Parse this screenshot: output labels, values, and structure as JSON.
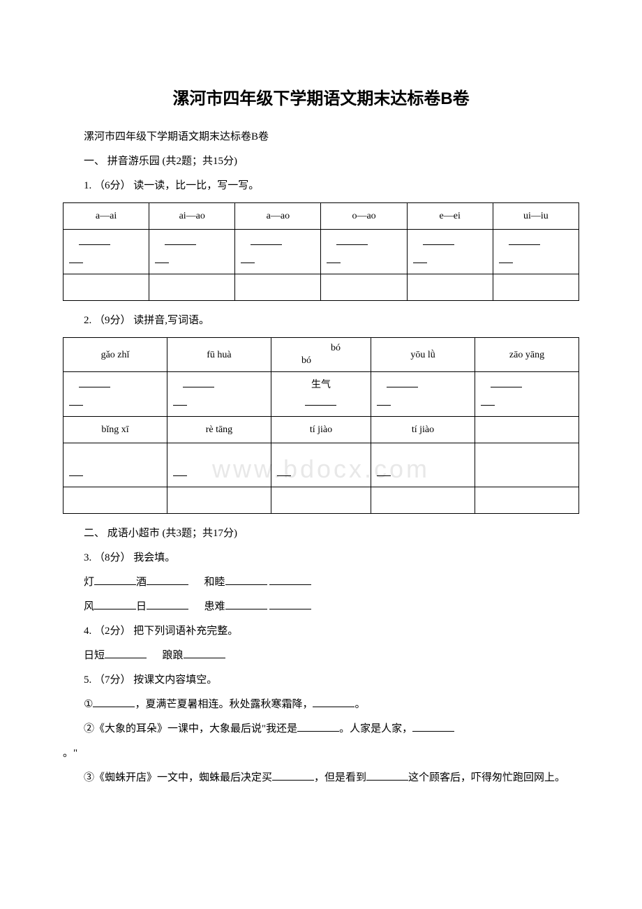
{
  "watermark": "www.bdocx.com",
  "title": "漯河市四年级下学期语文期末达标卷B卷",
  "subtitle": "漯河市四年级下学期语文期末达标卷B卷",
  "section1": {
    "heading": "一、 拼音游乐园 (共2题；共15分)",
    "q1": {
      "prompt": "1. （6分） 读一读，比一比，写一写。",
      "headers": [
        "a—ai",
        "ai—ao",
        "a—ao",
        "o—ao",
        "e—ei",
        "ui—iu"
      ]
    },
    "q2": {
      "prompt": "2. （9分） 读拼音,写词语。",
      "row1": [
        "gǎo zhǐ",
        "fū huà",
        "bó",
        "yōu lǜ",
        "zāo yāng"
      ],
      "bobo_left": "bó",
      "bobo_right": "bó",
      "shengqi": "生气",
      "row2": [
        "bǐng xī",
        "rè tāng",
        "tí jiào",
        "tí jiào",
        ""
      ]
    }
  },
  "section2": {
    "heading": "二、 成语小超市 (共3题；共17分)",
    "q3": {
      "prompt": "3. （8分） 我会填。",
      "line1_a": "灯",
      "line1_b": "酒",
      "line1_c": "和睦",
      "line2_a": "风",
      "line2_b": "日",
      "line2_c": "患难"
    },
    "q4": {
      "prompt": "4. （2分） 把下列词语补充完整。",
      "line1_a": "日短",
      "line1_b": "踉踉"
    },
    "q5": {
      "prompt": "5. （7分） 按课文内容填空。",
      "item1_a": "①",
      "item1_b": "，夏满芒夏暑相连。秋处露秋寒霜降，",
      "item1_c": "。",
      "item2_a": "②《大象的耳朵》一课中，大象最后说\"我还是",
      "item2_b": "。人家是人家，",
      "item2_c": "。\"",
      "item3_a": "③《蜘蛛开店》一文中，蜘蛛最后决定买",
      "item3_b": "，但是看到",
      "item3_c": "这个顾客后，吓得匆忙跑回网上。"
    }
  },
  "colors": {
    "text": "#000000",
    "background": "#ffffff",
    "border": "#000000",
    "watermark": "#e8e8e8"
  },
  "typography": {
    "title_fontsize": 24,
    "body_fontsize": 15,
    "table_fontsize": 14
  }
}
